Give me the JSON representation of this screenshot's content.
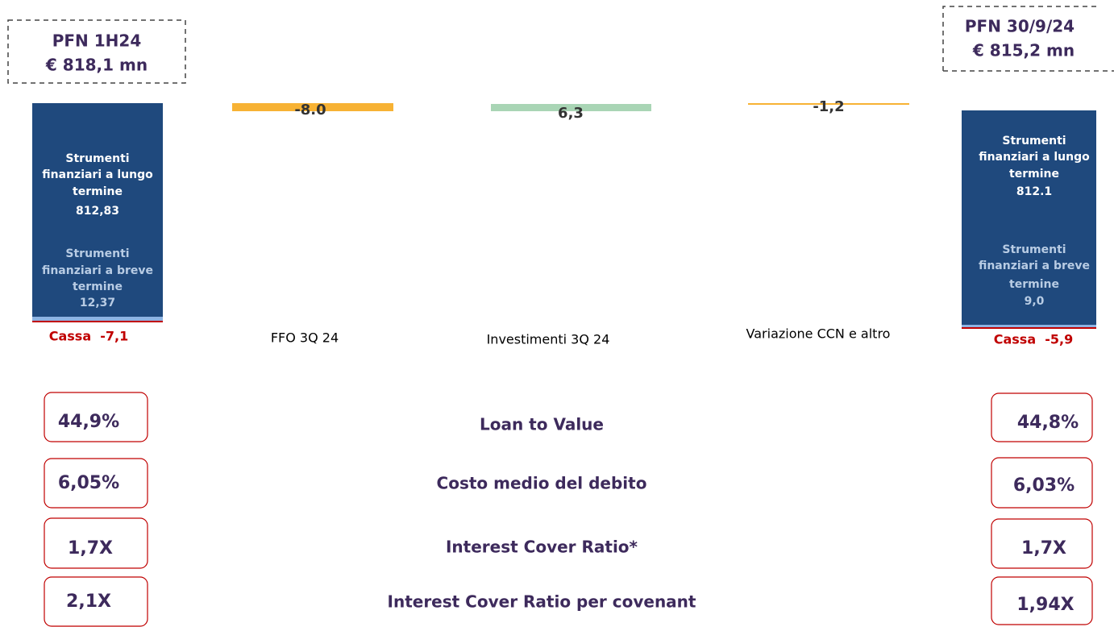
{
  "start": {
    "title": "PFN 1H24",
    "amount": "€ 818,1 mn",
    "long_term": {
      "label": [
        "Strumenti",
        "finanziari a lungo",
        "termine"
      ],
      "value": "812,83"
    },
    "short_term": {
      "label": [
        "Strumenti",
        "finanziari a breve",
        "termine"
      ],
      "value": "12,37"
    },
    "cash": "Cassa  -7,1"
  },
  "steps": [
    {
      "label": "FFO 3Q 24",
      "value": "-8.0"
    },
    {
      "label": "Investimenti 3Q 24",
      "value": "6,3"
    },
    {
      "label": "Variazione CCN e altro",
      "value": "-1,2"
    }
  ],
  "end": {
    "title": "PFN 30/9/24",
    "amount": "€  815,2 mn",
    "long_term": {
      "label": [
        "Strumenti",
        "finanziari a lungo",
        "termine"
      ],
      "value": "812.1"
    },
    "short_term": {
      "label": [
        "Strumenti",
        "finanziari a breve",
        "termine"
      ],
      "value": "9,0"
    },
    "cash": "Cassa  -5,9"
  },
  "kpis": [
    {
      "label": "Loan to Value",
      "before": "44,9%",
      "after": "44,8%"
    },
    {
      "label": "Costo medio del debito",
      "before": "6,05%",
      "after": "6,03%"
    },
    {
      "label": "Interest Cover Ratio*",
      "before": "1,7X",
      "after": "1,7X"
    },
    {
      "label": "Interest Cover Ratio per covenant",
      "before": "2,1X",
      "after": "1,94X"
    }
  ]
}
